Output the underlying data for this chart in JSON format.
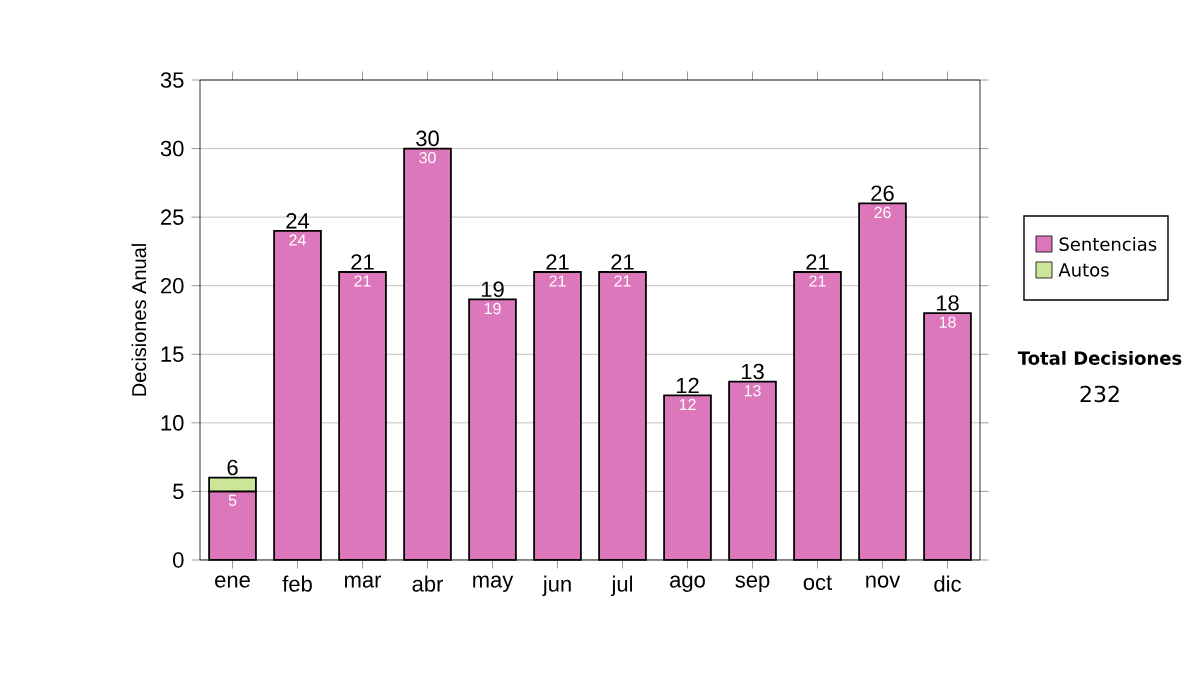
{
  "chart_data": {
    "type": "bar",
    "stacked": true,
    "ylabel": "Decisiones Anual",
    "categories": [
      "ene",
      "feb",
      "mar",
      "abr",
      "may",
      "jun",
      "jul",
      "ago",
      "sep",
      "oct",
      "nov",
      "dic"
    ],
    "series": [
      {
        "name": "Sentencias",
        "color": "#dd77bb",
        "values": [
          5,
          24,
          21,
          30,
          19,
          21,
          21,
          12,
          13,
          21,
          26,
          18
        ],
        "value_labels": [
          "5",
          "24",
          "21",
          "30",
          "19",
          "21",
          "21",
          "12",
          "13",
          "21",
          "26",
          "18"
        ]
      },
      {
        "name": "Autos",
        "color": "#cce699",
        "values": [
          1,
          null,
          null,
          null,
          null,
          null,
          null,
          null,
          null,
          null,
          null,
          null
        ]
      }
    ],
    "totals": [
      "6",
      "24",
      "21",
      "30",
      "19",
      "21",
      "21",
      "12",
      "13",
      "21",
      "26",
      "18"
    ],
    "ylim": [
      0,
      35
    ],
    "yticks": [
      0,
      5,
      10,
      15,
      20,
      25,
      30,
      35
    ],
    "grid": "y",
    "legend": "right",
    "annotations": [
      "Total Decisiones",
      "232"
    ]
  }
}
